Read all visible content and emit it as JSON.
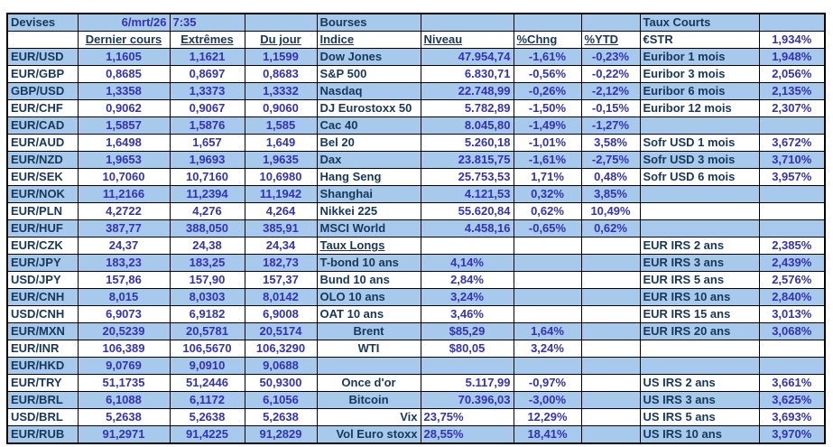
{
  "report": {
    "date": "6/mrt/26",
    "time": "7:35"
  },
  "palette": {
    "row_blue": "#A6C9EC",
    "row_white": "#FFFFFF",
    "label_navy": "#17375D",
    "value_blue": "#3433B4",
    "border_black": "#000000"
  },
  "devises": {
    "title": "Devises",
    "headers": [
      "Dernier cours",
      "Extrêmes",
      "Du jour"
    ],
    "rows": [
      [
        "EUR/USD",
        "1,1605",
        "1,1621",
        "1,1599"
      ],
      [
        "EUR/GBP",
        "0,8685",
        "0,8697",
        "0,8683"
      ],
      [
        "GBP/USD",
        "1,3358",
        "1,3373",
        "1,3332"
      ],
      [
        "EUR/CHF",
        "0,9062",
        "0,9067",
        "0,9060"
      ],
      [
        "EUR/CAD",
        "1,5857",
        "1,5876",
        "1,585"
      ],
      [
        "EUR/AUD",
        "1,6498",
        "1,657",
        "1,649"
      ],
      [
        "EUR/NZD",
        "1,9653",
        "1,9693",
        "1,9635"
      ],
      [
        "EUR/SEK",
        "10,7060",
        "10,7160",
        "10,6980"
      ],
      [
        "EUR/NOK",
        "11,2166",
        "11,2394",
        "11,1942"
      ],
      [
        "EUR/PLN",
        "4,2722",
        "4,276",
        "4,264"
      ],
      [
        "EUR/HUF",
        "387,77",
        "388,050",
        "385,91"
      ],
      [
        "EUR/CZK",
        "24,37",
        "24,38",
        "24,34"
      ],
      [
        "EUR/JPY",
        "183,23",
        "183,25",
        "182,73"
      ],
      [
        "USD/JPY",
        "157,86",
        "157,90",
        "157,37"
      ],
      [
        "EUR/CNH",
        "8,015",
        "8,0303",
        "8,0142"
      ],
      [
        "USD/CNH",
        "6,9073",
        "6,9182",
        "6,9008"
      ],
      [
        "EUR/MXN",
        "20,5239",
        "20,5781",
        "20,5174"
      ],
      [
        "EUR/INR",
        "106,389",
        "106,5670",
        "106,3290"
      ],
      [
        "EUR/HKD",
        "9,0769",
        "9,0910",
        "9,0688"
      ],
      [
        "EUR/TRY",
        "51,1735",
        "51,2446",
        "50,9300"
      ],
      [
        "EUR/BRL",
        "6,1088",
        "6,1172",
        "6,1056"
      ],
      [
        "USD/BRL",
        "5,2638",
        "5,2638",
        "5,2638"
      ],
      [
        "EUR/RUB",
        "91,2971",
        "91,4225",
        "91,2829"
      ]
    ]
  },
  "bourses": {
    "title": "Bourses",
    "headers": [
      "Indice",
      "Niveau",
      "%Chng",
      "%YTD"
    ],
    "rows": [
      [
        "Dow Jones",
        "47.954,74",
        "-1,61%",
        "-0,23%"
      ],
      [
        "S&P 500",
        "6.830,71",
        "-0,56%",
        "-0,22%"
      ],
      [
        "Nasdaq",
        "22.748,99",
        "-0,26%",
        "-2,12%"
      ],
      [
        "DJ Eurostoxx 50",
        "5.782,89",
        "-1,50%",
        "-0,15%"
      ],
      [
        "Cac 40",
        "8.045,80",
        "-1,49%",
        "-1,27%"
      ],
      [
        "Bel 20",
        "5.260,18",
        "-1,01%",
        "3,58%"
      ],
      [
        "Dax",
        "23.815,75",
        "-1,61%",
        "-2,75%"
      ],
      [
        "Hang Seng",
        "25.753,53",
        "1,71%",
        "0,48%"
      ],
      [
        "Shanghai",
        "4.121,53",
        "0,32%",
        "3,85%"
      ],
      [
        "Nikkei 225",
        "55.620,84",
        "0,62%",
        "10,49%"
      ],
      [
        "MSCI World",
        "4.458,16",
        "-0,65%",
        "0,62%"
      ]
    ]
  },
  "taux_longs": {
    "title": "Taux Longs",
    "rows": [
      [
        "T-bond 10 ans",
        "4,14%"
      ],
      [
        "Bund 10 ans",
        "2,84%"
      ],
      [
        "OLO 10 ans",
        "3,24%"
      ],
      [
        "OAT 10 ans",
        "3,46%"
      ]
    ]
  },
  "energie": {
    "rows": [
      [
        "Brent",
        "$85,29",
        "1,64%"
      ],
      [
        "WTI",
        "$80,05",
        "3,24%"
      ]
    ]
  },
  "autres": {
    "rows": [
      [
        "Once d'or",
        "5.117,99",
        "-0,97%"
      ],
      [
        "Bitcoin",
        "70.396,03",
        "-3,00%"
      ],
      [
        "Vix",
        "23,75%",
        "12,29%"
      ],
      [
        "Vol Euro stoxx",
        "28,55%",
        "18,41%"
      ]
    ]
  },
  "taux_courts": {
    "title": "Taux Courts",
    "rows": [
      [
        "€STR",
        "1,934%"
      ],
      [
        "Euribor 1 mois",
        "1,948%"
      ],
      [
        "Euribor 3 mois",
        "2,056%"
      ],
      [
        "Euribor 6 mois",
        "2,135%"
      ],
      [
        "Euribor 12 mois",
        "2,307%"
      ],
      [
        "",
        ""
      ],
      [
        "Sofr USD 1 mois",
        "3,672%"
      ],
      [
        "Sofr USD 3 mois",
        "3,710%"
      ],
      [
        "Sofr USD 6 mois",
        "3,957%"
      ],
      [
        "",
        ""
      ],
      [
        "",
        ""
      ],
      [
        "",
        ""
      ],
      [
        "EUR IRS 2 ans",
        "2,385%"
      ],
      [
        "EUR IRS 3 ans",
        "2,439%"
      ],
      [
        "EUR IRS 5 ans",
        "2,576%"
      ],
      [
        "EUR IRS 10 ans",
        "2,840%"
      ],
      [
        "EUR IRS 15 ans",
        "3,013%"
      ],
      [
        "EUR IRS 20 ans",
        "3,068%"
      ],
      [
        "",
        ""
      ],
      [
        "",
        ""
      ],
      [
        "US IRS 2 ans",
        "3,661%"
      ],
      [
        "US IRS 3 ans",
        "3,625%"
      ],
      [
        "US IRS 5 ans",
        "3,693%"
      ],
      [
        "US IRS 10 ans",
        "3,970%"
      ],
      [
        "",
        ""
      ]
    ]
  }
}
